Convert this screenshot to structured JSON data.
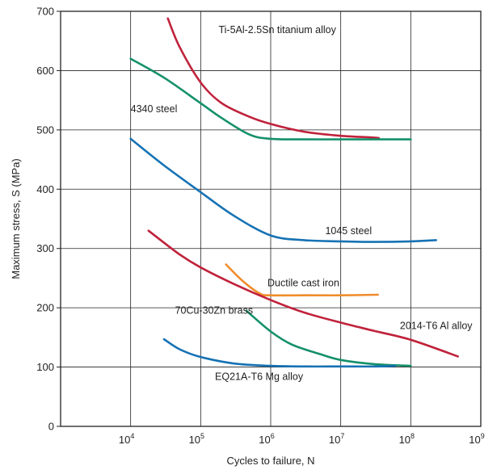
{
  "chart_data": {
    "type": "line",
    "title": "",
    "xlabel": "Cycles to failure, N",
    "ylabel": "Maximum stress, S (MPa)",
    "x_scale": "log",
    "xlim": [
      1000,
      1000000000
    ],
    "ylim": [
      0,
      700
    ],
    "x_ticks": [
      {
        "value": 10000,
        "base": "10",
        "exp": "4"
      },
      {
        "value": 100000,
        "base": "10",
        "exp": "5"
      },
      {
        "value": 1000000,
        "base": "10",
        "exp": "6"
      },
      {
        "value": 10000000,
        "base": "10",
        "exp": "7"
      },
      {
        "value": 100000000,
        "base": "10",
        "exp": "8"
      },
      {
        "value": 1000000000,
        "base": "10",
        "exp": "9"
      }
    ],
    "y_ticks": [
      0,
      100,
      200,
      300,
      400,
      500,
      600,
      700
    ],
    "grid": true,
    "legend": "none",
    "series": [
      {
        "name": "Ti-5Al-2.5Sn titanium alloy",
        "color": "#c0223b",
        "x": [
          34000,
          50000,
          100000,
          200000,
          500000,
          1000000,
          3000000,
          10000000,
          30000000,
          35000000
        ],
        "y": [
          688,
          640,
          580,
          545,
          522,
          510,
          497,
          490,
          487,
          486
        ]
      },
      {
        "name": "4340 steel",
        "color": "#14906a",
        "x": [
          10000,
          30000,
          100000,
          200000,
          500000,
          1000000,
          3000000,
          10000000,
          30000000,
          100000000
        ],
        "y": [
          620,
          588,
          545,
          520,
          492,
          485,
          484,
          484,
          484,
          484
        ]
      },
      {
        "name": "1045 steel",
        "color": "#1672b4",
        "x": [
          10000,
          30000,
          100000,
          300000,
          1000000,
          3000000,
          10000000,
          30000000,
          100000000,
          230000000
        ],
        "y": [
          485,
          440,
          395,
          355,
          322,
          314,
          312,
          311,
          312,
          314
        ]
      },
      {
        "name": "Ductile cast iron",
        "color": "#f08c2c",
        "x": [
          230000,
          400000,
          700000,
          1000000,
          3000000,
          10000000,
          34000000
        ],
        "y": [
          273,
          245,
          224,
          221,
          221,
          221,
          222
        ]
      },
      {
        "name": "2014-T6 Al alloy",
        "color": "#c0223b",
        "x": [
          18000,
          50000,
          100000,
          300000,
          1000000,
          3000000,
          10000000,
          30000000,
          100000000,
          470000000
        ],
        "y": [
          330,
          290,
          268,
          240,
          213,
          192,
          175,
          161,
          146,
          118
        ]
      },
      {
        "name": "70Cu-30Zn brass",
        "color": "#14906a",
        "x": [
          450000,
          1000000,
          2000000,
          5000000,
          10000000,
          30000000,
          100000000
        ],
        "y": [
          195,
          160,
          138,
          122,
          112,
          105,
          102
        ]
      },
      {
        "name": "EQ21A-T6 Mg alloy",
        "color": "#1672b4",
        "x": [
          30000,
          50000,
          100000,
          300000,
          1000000,
          3000000,
          10000000,
          30000000,
          60000000
        ],
        "y": [
          147,
          130,
          117,
          106,
          102,
          101,
          101,
          101,
          102
        ]
      }
    ],
    "annotations": [
      {
        "text": "Ti-5Al-2.5Sn titanium alloy",
        "x": 180000,
        "y": 663
      },
      {
        "text": "4340 steel",
        "x": 10000,
        "y": 530
      },
      {
        "text": "1045 steel",
        "x": 6000000,
        "y": 324
      },
      {
        "text": "Ductile cast iron",
        "x": 900000,
        "y": 236
      },
      {
        "text": "70Cu-30Zn brass",
        "x": 43000,
        "y": 190
      },
      {
        "text": "2014-T6 Al alloy",
        "x": 70000000,
        "y": 164
      },
      {
        "text": "EQ21A-T6 Mg alloy",
        "x": 160000,
        "y": 78
      }
    ]
  }
}
